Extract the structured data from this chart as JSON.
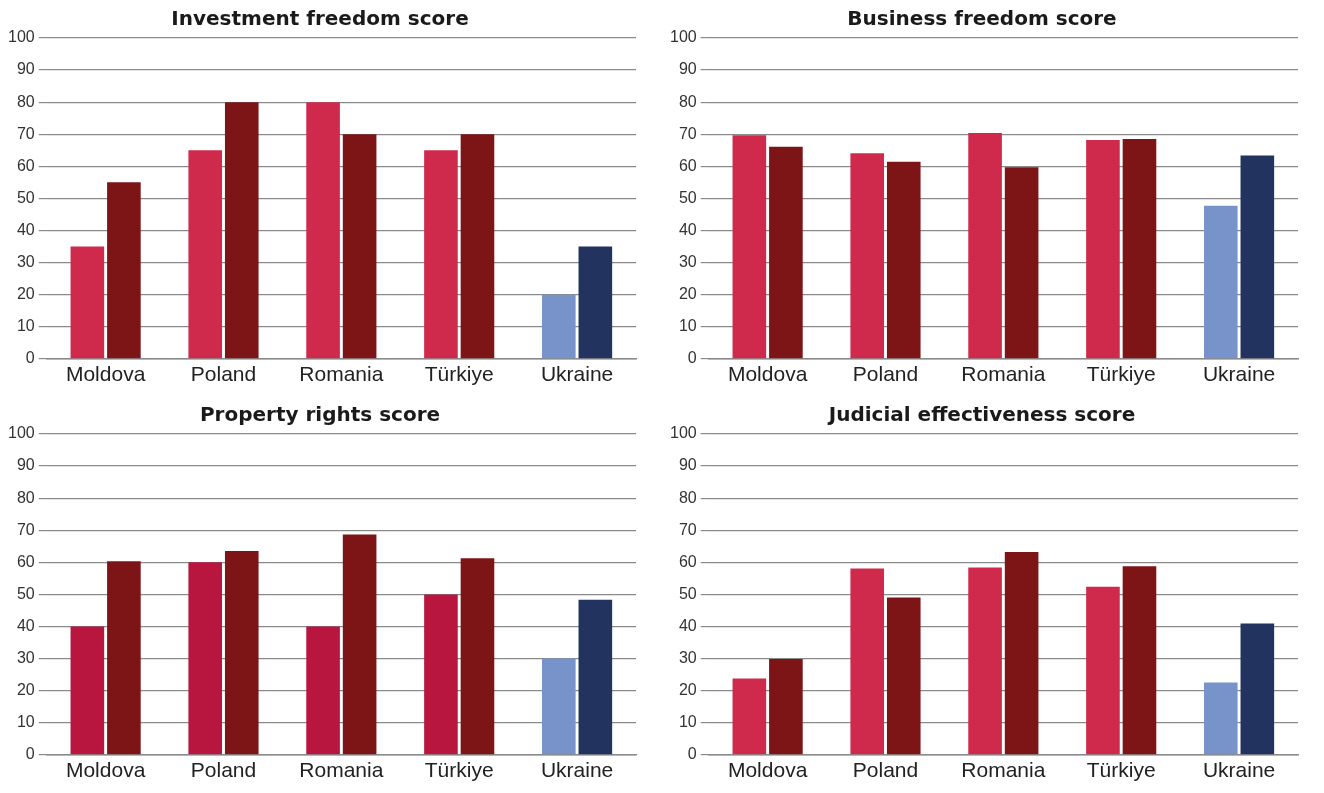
{
  "chart_data": [
    {
      "type": "bar",
      "title": "Investment freedom score",
      "categories": [
        "Moldova",
        "Poland",
        "Romania",
        "Türkiye",
        "Ukraine"
      ],
      "ylim": [
        0,
        100
      ],
      "yticks": [
        0,
        10,
        20,
        30,
        40,
        50,
        60,
        70,
        80,
        90,
        100
      ],
      "grid": "y",
      "series": [
        {
          "colors": [
            "#cf2a4c",
            "#cf2a4c",
            "#cf2a4c",
            "#cf2a4c",
            "#7793c9"
          ],
          "values": [
            35,
            65,
            80,
            65,
            20
          ]
        },
        {
          "colors": [
            "#7d1517",
            "#7d1517",
            "#7d1517",
            "#7d1517",
            "#22335f"
          ],
          "values": [
            55,
            80,
            70,
            70,
            35
          ]
        }
      ]
    },
    {
      "type": "bar",
      "title": "Business freedom score",
      "categories": [
        "Moldova",
        "Poland",
        "Romania",
        "Türkiye",
        "Ukraine"
      ],
      "ylim": [
        0,
        100
      ],
      "yticks": [
        0,
        10,
        20,
        30,
        40,
        50,
        60,
        70,
        80,
        90,
        100
      ],
      "grid": "y",
      "series": [
        {
          "colors": [
            "#cf2a4c",
            "#cf2a4c",
            "#cf2a4c",
            "#cf2a4c",
            "#7793c9"
          ],
          "values": [
            69.7,
            64.1,
            70.4,
            68.2,
            47.7
          ]
        },
        {
          "colors": [
            "#7d1517",
            "#7d1517",
            "#7d1517",
            "#7d1517",
            "#22335f"
          ],
          "values": [
            66.1,
            61.4,
            59.7,
            68.5,
            63.4
          ]
        }
      ]
    },
    {
      "type": "bar",
      "title": "Property rights score",
      "categories": [
        "Moldova",
        "Poland",
        "Romania",
        "Türkiye",
        "Ukraine"
      ],
      "ylim": [
        0,
        100
      ],
      "yticks": [
        0,
        10,
        20,
        30,
        40,
        50,
        60,
        70,
        80,
        90,
        100
      ],
      "grid": "y",
      "series": [
        {
          "colors": [
            "#b8163f",
            "#b8163f",
            "#b8163f",
            "#b8163f",
            "#7793c9"
          ],
          "values": [
            40,
            60,
            40,
            50,
            30
          ]
        },
        {
          "colors": [
            "#7d1517",
            "#7d1517",
            "#7d1517",
            "#7d1517",
            "#22335f"
          ],
          "values": [
            60.3,
            63.5,
            68.7,
            61.3,
            48.3
          ]
        }
      ]
    },
    {
      "type": "bar",
      "title": "Judicial effectiveness score",
      "categories": [
        "Moldova",
        "Poland",
        "Romania",
        "Türkiye",
        "Ukraine"
      ],
      "ylim": [
        0,
        100
      ],
      "yticks": [
        0,
        10,
        20,
        30,
        40,
        50,
        60,
        70,
        80,
        90,
        100
      ],
      "grid": "y",
      "series": [
        {
          "colors": [
            "#cf2a4c",
            "#cf2a4c",
            "#cf2a4c",
            "#cf2a4c",
            "#7793c9"
          ],
          "values": [
            23.8,
            58.1,
            58.4,
            52.4,
            22.5
          ]
        },
        {
          "colors": [
            "#7d1517",
            "#7d1517",
            "#7d1517",
            "#7d1517",
            "#22335f"
          ],
          "values": [
            29.9,
            49.0,
            63.2,
            58.8,
            40.9
          ]
        }
      ]
    }
  ]
}
